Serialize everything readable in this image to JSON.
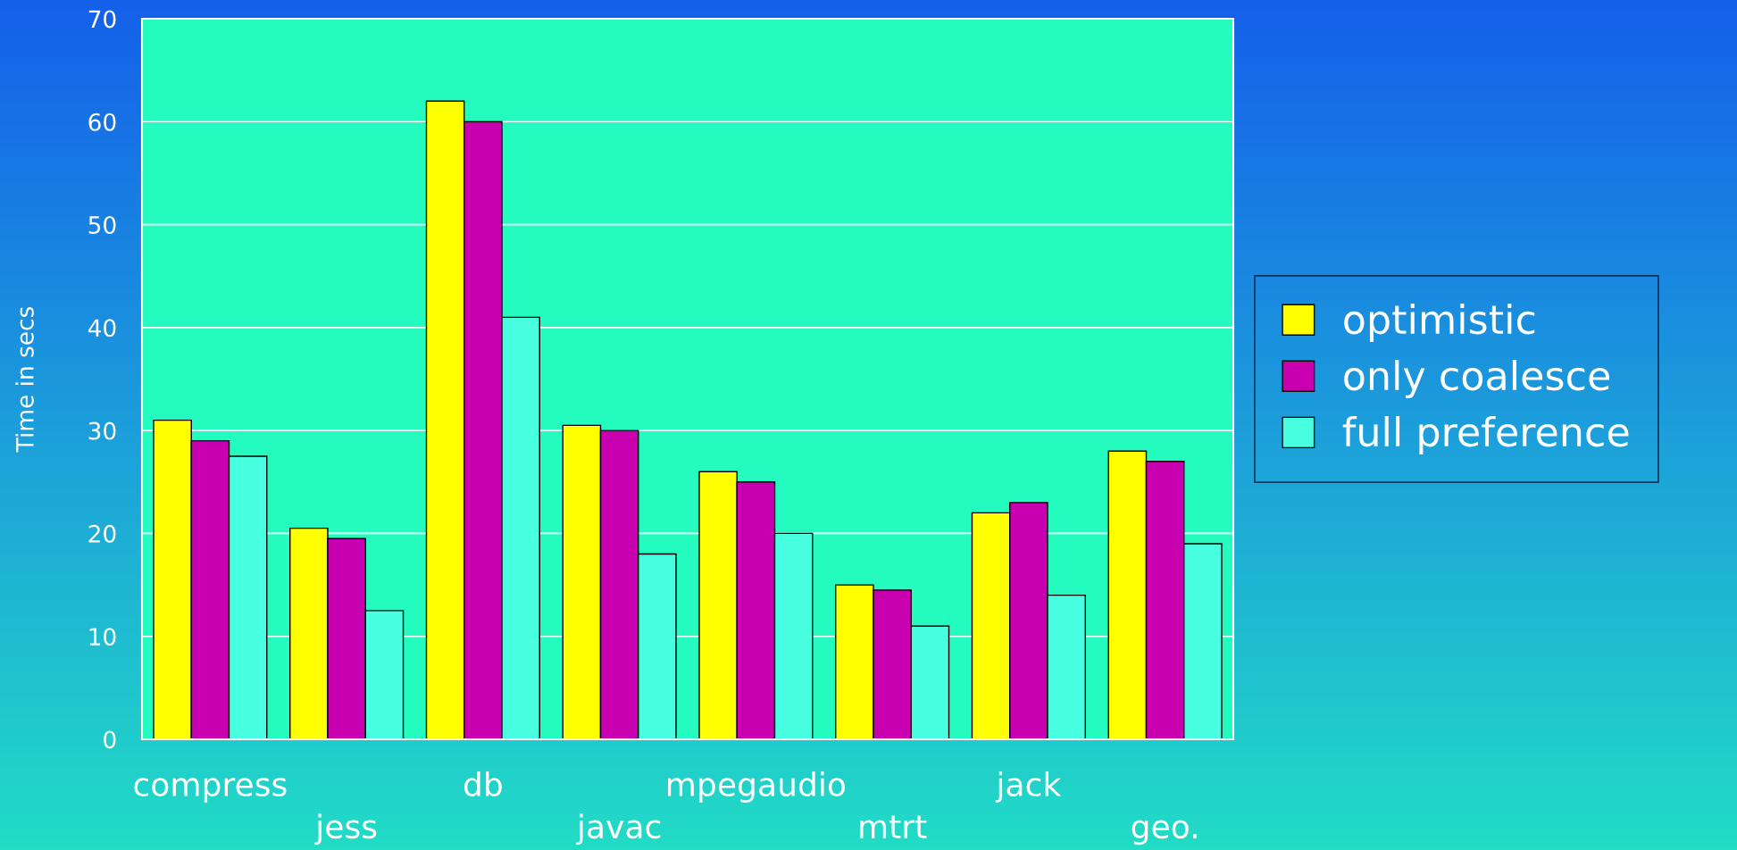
{
  "chart_data": {
    "type": "bar",
    "ylabel": "Time in secs",
    "categories": [
      "compress",
      "jess",
      "db",
      "javac",
      "mpegaudio",
      "mtrt",
      "jack",
      "geo."
    ],
    "series": [
      {
        "name": "optimistic",
        "color": "#ffff00",
        "values": [
          31,
          20.5,
          62,
          30.5,
          26,
          15,
          22,
          28
        ]
      },
      {
        "name": "only coalesce",
        "color": "#c800b0",
        "values": [
          29,
          19.5,
          60,
          30,
          25,
          14.5,
          23,
          27
        ]
      },
      {
        "name": "full preference",
        "color": "#48ffe0",
        "values": [
          27.5,
          12.5,
          41,
          18,
          20,
          11,
          14,
          19
        ]
      }
    ],
    "ylim": [
      0,
      70
    ],
    "yticks": [
      0,
      10,
      20,
      30,
      40,
      50,
      60,
      70
    ],
    "grid": "y",
    "legend": "right"
  }
}
